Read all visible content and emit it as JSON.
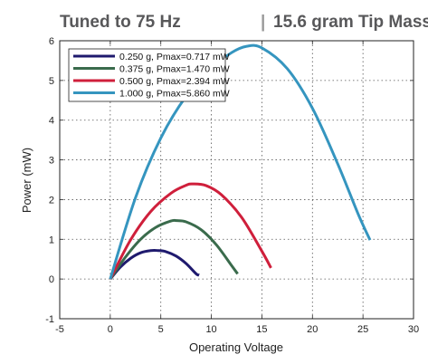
{
  "title": {
    "left": "Tuned to 75 Hz",
    "right": "15.6 gram Tip Mass"
  },
  "chart_data": {
    "type": "line",
    "xlabel": "Operating Voltage",
    "ylabel": "Power (mW)",
    "xlim": [
      -5,
      30
    ],
    "ylim": [
      -1,
      6
    ],
    "xticks": [
      "-5",
      "0",
      "5",
      "10",
      "15",
      "20",
      "25",
      "30"
    ],
    "yticks": [
      "-1",
      "0",
      "1",
      "2",
      "3",
      "4",
      "5",
      "6"
    ],
    "grid": true,
    "legend_position": "top-left",
    "series": [
      {
        "name": "0.250 g, Pmax=0.717 mW",
        "color": "#1f1a6e",
        "x": [
          0,
          1,
          2,
          3,
          4,
          4.7,
          5.5,
          6.5,
          7.5,
          8.5,
          8.8
        ],
        "y": [
          0,
          0.3,
          0.52,
          0.66,
          0.715,
          0.717,
          0.69,
          0.58,
          0.39,
          0.13,
          0.1
        ]
      },
      {
        "name": "0.375 g, Pmax=1.470 mW",
        "color": "#3a6b4c",
        "x": [
          0,
          1.5,
          3,
          4.5,
          6,
          6.6,
          7.5,
          9,
          10.5,
          12,
          12.6
        ],
        "y": [
          0,
          0.55,
          1.0,
          1.3,
          1.46,
          1.47,
          1.44,
          1.24,
          0.86,
          0.34,
          0.13
        ]
      },
      {
        "name": "0.500 g, Pmax=2.394 mW",
        "color": "#cf1f3b",
        "x": [
          0,
          2,
          4,
          6,
          7.5,
          8.2,
          9.5,
          11,
          13,
          15,
          15.9
        ],
        "y": [
          0,
          0.98,
          1.7,
          2.16,
          2.36,
          2.394,
          2.35,
          2.12,
          1.55,
          0.7,
          0.28
        ]
      },
      {
        "name": "1.000 g, Pmax=5.860 mW",
        "color": "#3595bf",
        "x": [
          0,
          2.5,
          5,
          7.5,
          10,
          12,
          13.5,
          15,
          17.5,
          20,
          22.5,
          24.5,
          25.7
        ],
        "y": [
          0,
          2.05,
          3.55,
          4.6,
          5.3,
          5.7,
          5.86,
          5.82,
          5.3,
          4.3,
          2.9,
          1.65,
          0.98
        ]
      }
    ]
  }
}
